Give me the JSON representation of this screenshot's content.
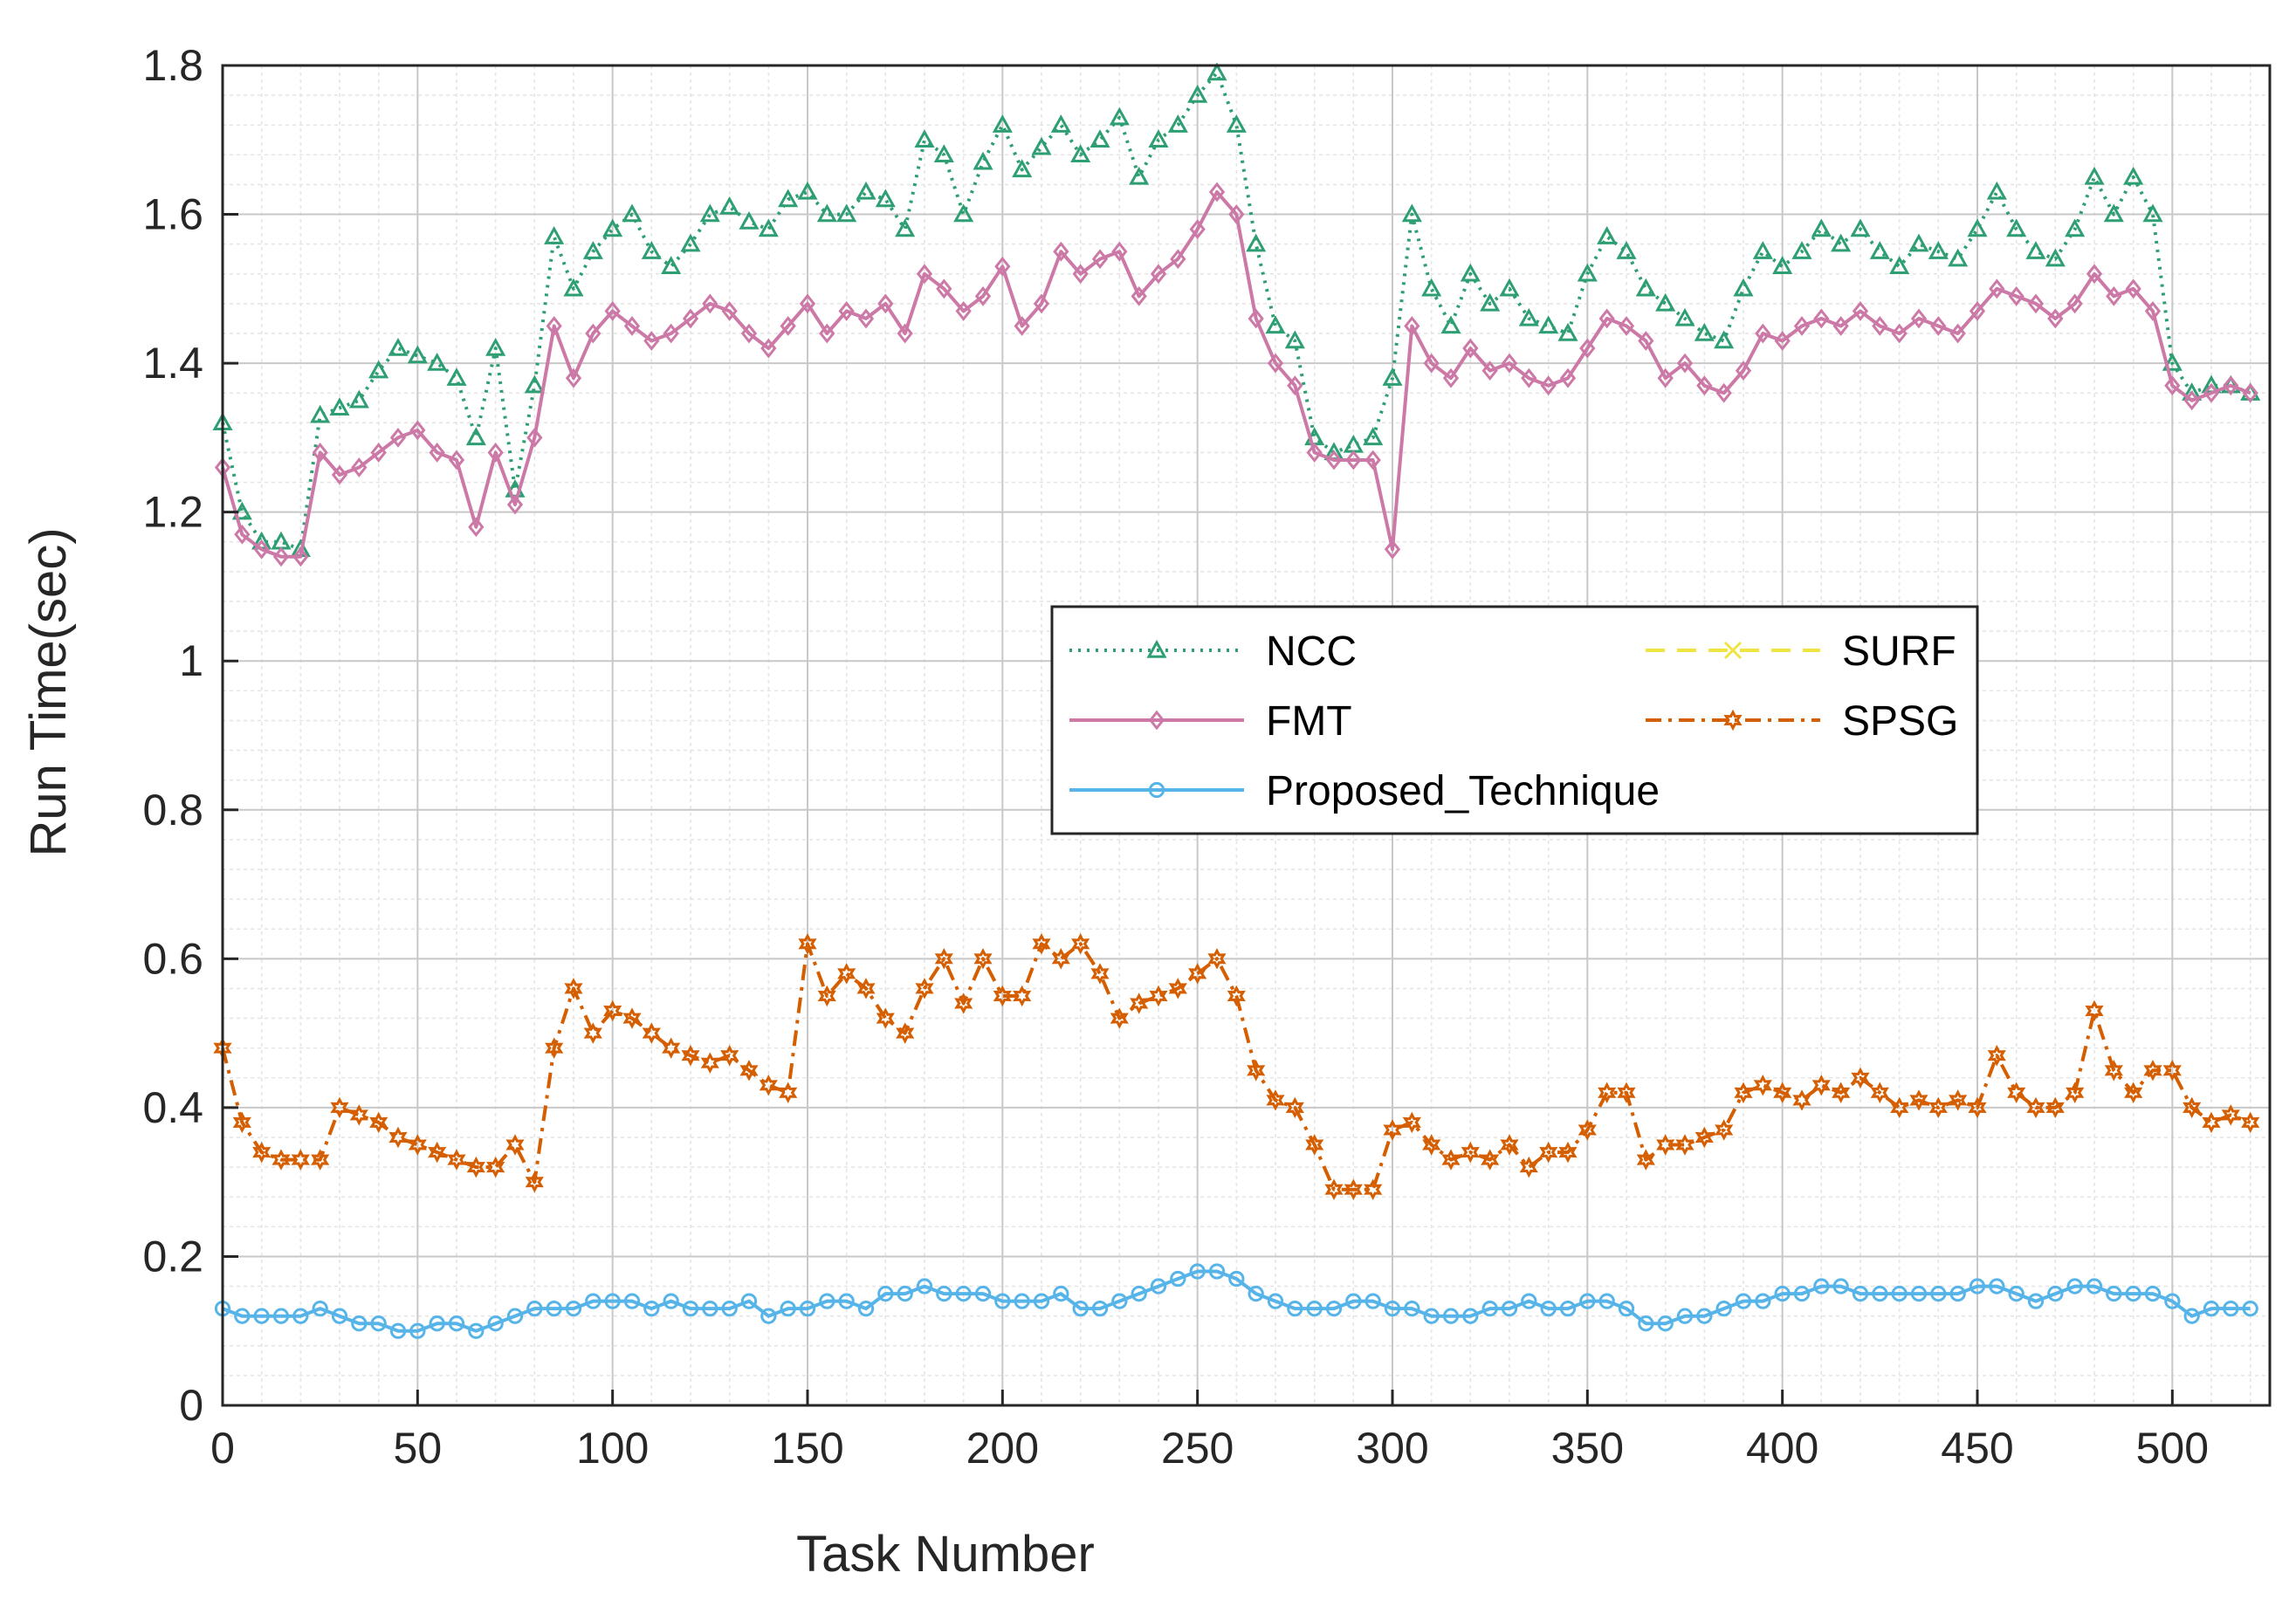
{
  "chart_data": {
    "type": "line",
    "title": "",
    "xlabel": "Task Number",
    "ylabel": "Run Time(sec)",
    "xlim": [
      0,
      525
    ],
    "ylim": [
      0,
      1.8
    ],
    "x_ticks": [
      0,
      50,
      100,
      150,
      200,
      250,
      300,
      350,
      400,
      450,
      500
    ],
    "y_ticks": [
      0,
      0.2,
      0.4,
      0.6,
      0.8,
      1,
      1.2,
      1.4,
      1.6,
      1.8
    ],
    "y_tick_labels": [
      "0",
      "0.2",
      "0.4",
      "0.6",
      "0.8",
      "1",
      "1.2",
      "1.4",
      "1.6",
      "1.8"
    ],
    "grid": true,
    "minor_grid": true,
    "legend_position": "center-right",
    "x_step": 5,
    "series": [
      {
        "name": "NCC",
        "color": "#2e9e73",
        "line_style": "dotted",
        "marker": "triangle",
        "values": [
          1.32,
          1.2,
          1.16,
          1.16,
          1.15,
          1.33,
          1.34,
          1.35,
          1.39,
          1.42,
          1.41,
          1.4,
          1.38,
          1.3,
          1.42,
          1.23,
          1.37,
          1.57,
          1.5,
          1.55,
          1.58,
          1.6,
          1.55,
          1.53,
          1.56,
          1.6,
          1.61,
          1.59,
          1.58,
          1.62,
          1.63,
          1.6,
          1.6,
          1.63,
          1.62,
          1.58,
          1.7,
          1.68,
          1.6,
          1.67,
          1.72,
          1.66,
          1.69,
          1.72,
          1.68,
          1.7,
          1.73,
          1.65,
          1.7,
          1.72,
          1.76,
          1.79,
          1.72,
          1.56,
          1.45,
          1.43,
          1.3,
          1.28,
          1.29,
          1.3,
          1.38,
          1.6,
          1.5,
          1.45,
          1.52,
          1.48,
          1.5,
          1.46,
          1.45,
          1.44,
          1.52,
          1.57,
          1.55,
          1.5,
          1.48,
          1.46,
          1.44,
          1.43,
          1.5,
          1.55,
          1.53,
          1.55,
          1.58,
          1.56,
          1.58,
          1.55,
          1.53,
          1.56,
          1.55,
          1.54,
          1.58,
          1.63,
          1.58,
          1.55,
          1.54,
          1.58,
          1.65,
          1.6,
          1.65,
          1.6,
          1.4,
          1.36,
          1.37,
          1.37,
          1.36
        ]
      },
      {
        "name": "FMT",
        "color": "#cc79a7",
        "line_style": "solid",
        "marker": "diamond",
        "values": [
          1.26,
          1.17,
          1.15,
          1.14,
          1.14,
          1.28,
          1.25,
          1.26,
          1.28,
          1.3,
          1.31,
          1.28,
          1.27,
          1.18,
          1.28,
          1.21,
          1.3,
          1.45,
          1.38,
          1.44,
          1.47,
          1.45,
          1.43,
          1.44,
          1.46,
          1.48,
          1.47,
          1.44,
          1.42,
          1.45,
          1.48,
          1.44,
          1.47,
          1.46,
          1.48,
          1.44,
          1.52,
          1.5,
          1.47,
          1.49,
          1.53,
          1.45,
          1.48,
          1.55,
          1.52,
          1.54,
          1.55,
          1.49,
          1.52,
          1.54,
          1.58,
          1.63,
          1.6,
          1.46,
          1.4,
          1.37,
          1.28,
          1.27,
          1.27,
          1.27,
          1.15,
          1.45,
          1.4,
          1.38,
          1.42,
          1.39,
          1.4,
          1.38,
          1.37,
          1.38,
          1.42,
          1.46,
          1.45,
          1.43,
          1.38,
          1.4,
          1.37,
          1.36,
          1.39,
          1.44,
          1.43,
          1.45,
          1.46,
          1.45,
          1.47,
          1.45,
          1.44,
          1.46,
          1.45,
          1.44,
          1.47,
          1.5,
          1.49,
          1.48,
          1.46,
          1.48,
          1.52,
          1.49,
          1.5,
          1.47,
          1.37,
          1.35,
          1.36,
          1.37,
          1.36
        ]
      },
      {
        "name": "Proposed_Technique",
        "color": "#56b4e9",
        "line_style": "solid",
        "marker": "circle",
        "values": [
          0.13,
          0.12,
          0.12,
          0.12,
          0.12,
          0.13,
          0.12,
          0.11,
          0.11,
          0.1,
          0.1,
          0.11,
          0.11,
          0.1,
          0.11,
          0.12,
          0.13,
          0.13,
          0.13,
          0.14,
          0.14,
          0.14,
          0.13,
          0.14,
          0.13,
          0.13,
          0.13,
          0.14,
          0.12,
          0.13,
          0.13,
          0.14,
          0.14,
          0.13,
          0.15,
          0.15,
          0.16,
          0.15,
          0.15,
          0.15,
          0.14,
          0.14,
          0.14,
          0.15,
          0.13,
          0.13,
          0.14,
          0.15,
          0.16,
          0.17,
          0.18,
          0.18,
          0.17,
          0.15,
          0.14,
          0.13,
          0.13,
          0.13,
          0.14,
          0.14,
          0.13,
          0.13,
          0.12,
          0.12,
          0.12,
          0.13,
          0.13,
          0.14,
          0.13,
          0.13,
          0.14,
          0.14,
          0.13,
          0.11,
          0.11,
          0.12,
          0.12,
          0.13,
          0.14,
          0.14,
          0.15,
          0.15,
          0.16,
          0.16,
          0.15,
          0.15,
          0.15,
          0.15,
          0.15,
          0.15,
          0.16,
          0.16,
          0.15,
          0.14,
          0.15,
          0.16,
          0.16,
          0.15,
          0.15,
          0.15,
          0.14,
          0.12,
          0.13,
          0.13,
          0.13
        ]
      },
      {
        "name": "SURF",
        "color": "#f0e442",
        "line_style": "dashed",
        "marker": "x",
        "values": []
      },
      {
        "name": "SPSG",
        "color": "#d55e00",
        "line_style": "dash-dot",
        "marker": "hexagram",
        "values": [
          0.48,
          0.38,
          0.34,
          0.33,
          0.33,
          0.33,
          0.4,
          0.39,
          0.38,
          0.36,
          0.35,
          0.34,
          0.33,
          0.32,
          0.32,
          0.35,
          0.3,
          0.48,
          0.56,
          0.5,
          0.53,
          0.52,
          0.5,
          0.48,
          0.47,
          0.46,
          0.47,
          0.45,
          0.43,
          0.42,
          0.62,
          0.55,
          0.58,
          0.56,
          0.52,
          0.5,
          0.56,
          0.6,
          0.54,
          0.6,
          0.55,
          0.55,
          0.62,
          0.6,
          0.62,
          0.58,
          0.52,
          0.54,
          0.55,
          0.56,
          0.58,
          0.6,
          0.55,
          0.45,
          0.41,
          0.4,
          0.35,
          0.29,
          0.29,
          0.29,
          0.37,
          0.38,
          0.35,
          0.33,
          0.34,
          0.33,
          0.35,
          0.32,
          0.34,
          0.34,
          0.37,
          0.42,
          0.42,
          0.33,
          0.35,
          0.35,
          0.36,
          0.37,
          0.42,
          0.43,
          0.42,
          0.41,
          0.43,
          0.42,
          0.44,
          0.42,
          0.4,
          0.41,
          0.4,
          0.41,
          0.4,
          0.47,
          0.42,
          0.4,
          0.4,
          0.42,
          0.53,
          0.45,
          0.42,
          0.45,
          0.45,
          0.4,
          0.38,
          0.39,
          0.38
        ]
      }
    ],
    "annotations": []
  }
}
